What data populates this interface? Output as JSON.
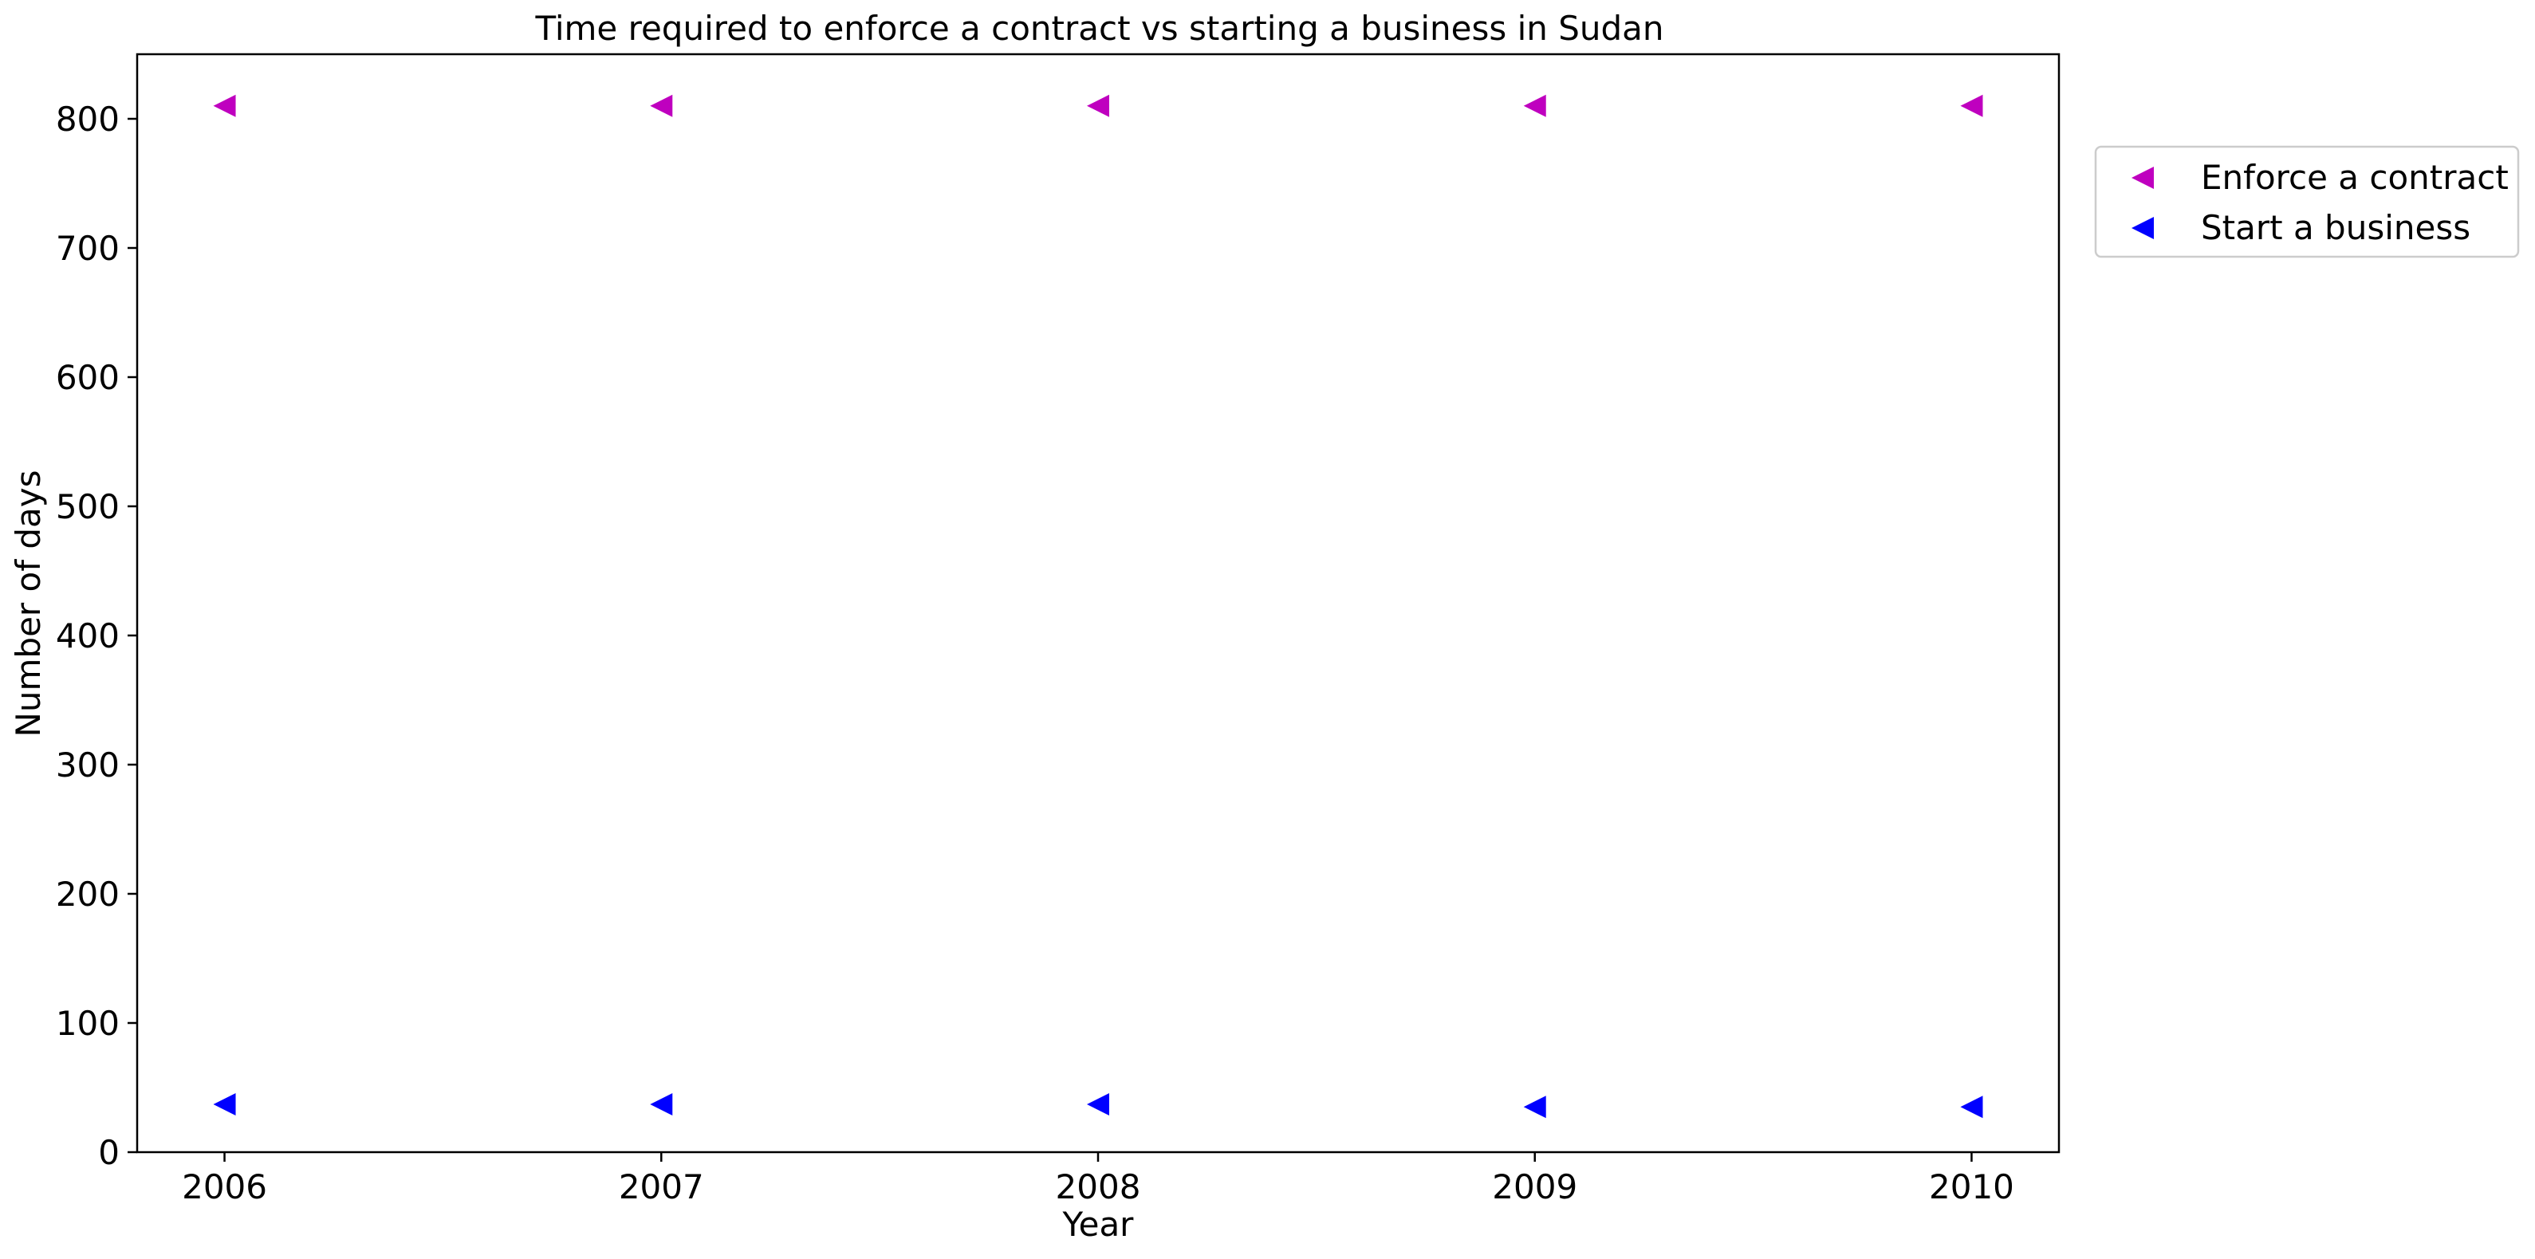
{
  "chart_data": {
    "type": "scatter",
    "title": "Time required to enforce a contract vs starting a business in Sudan",
    "xlabel": "Year",
    "ylabel": "Number of days",
    "x": [
      2006,
      2007,
      2008,
      2009,
      2010
    ],
    "xlim": [
      2005.8,
      2010.2
    ],
    "ylim": [
      0,
      850
    ],
    "yticks": [
      0,
      100,
      200,
      300,
      400,
      500,
      600,
      700,
      800
    ],
    "grid": false,
    "legend_position": "outside-upper-right",
    "marker": "triangle-left",
    "series": [
      {
        "name": "Enforce a contract",
        "color": "#bf00bf",
        "values": [
          810,
          810,
          810,
          810,
          810
        ]
      },
      {
        "name": "Start a business",
        "color": "#0000ff",
        "values": [
          37,
          37,
          37,
          35,
          35
        ]
      }
    ]
  }
}
